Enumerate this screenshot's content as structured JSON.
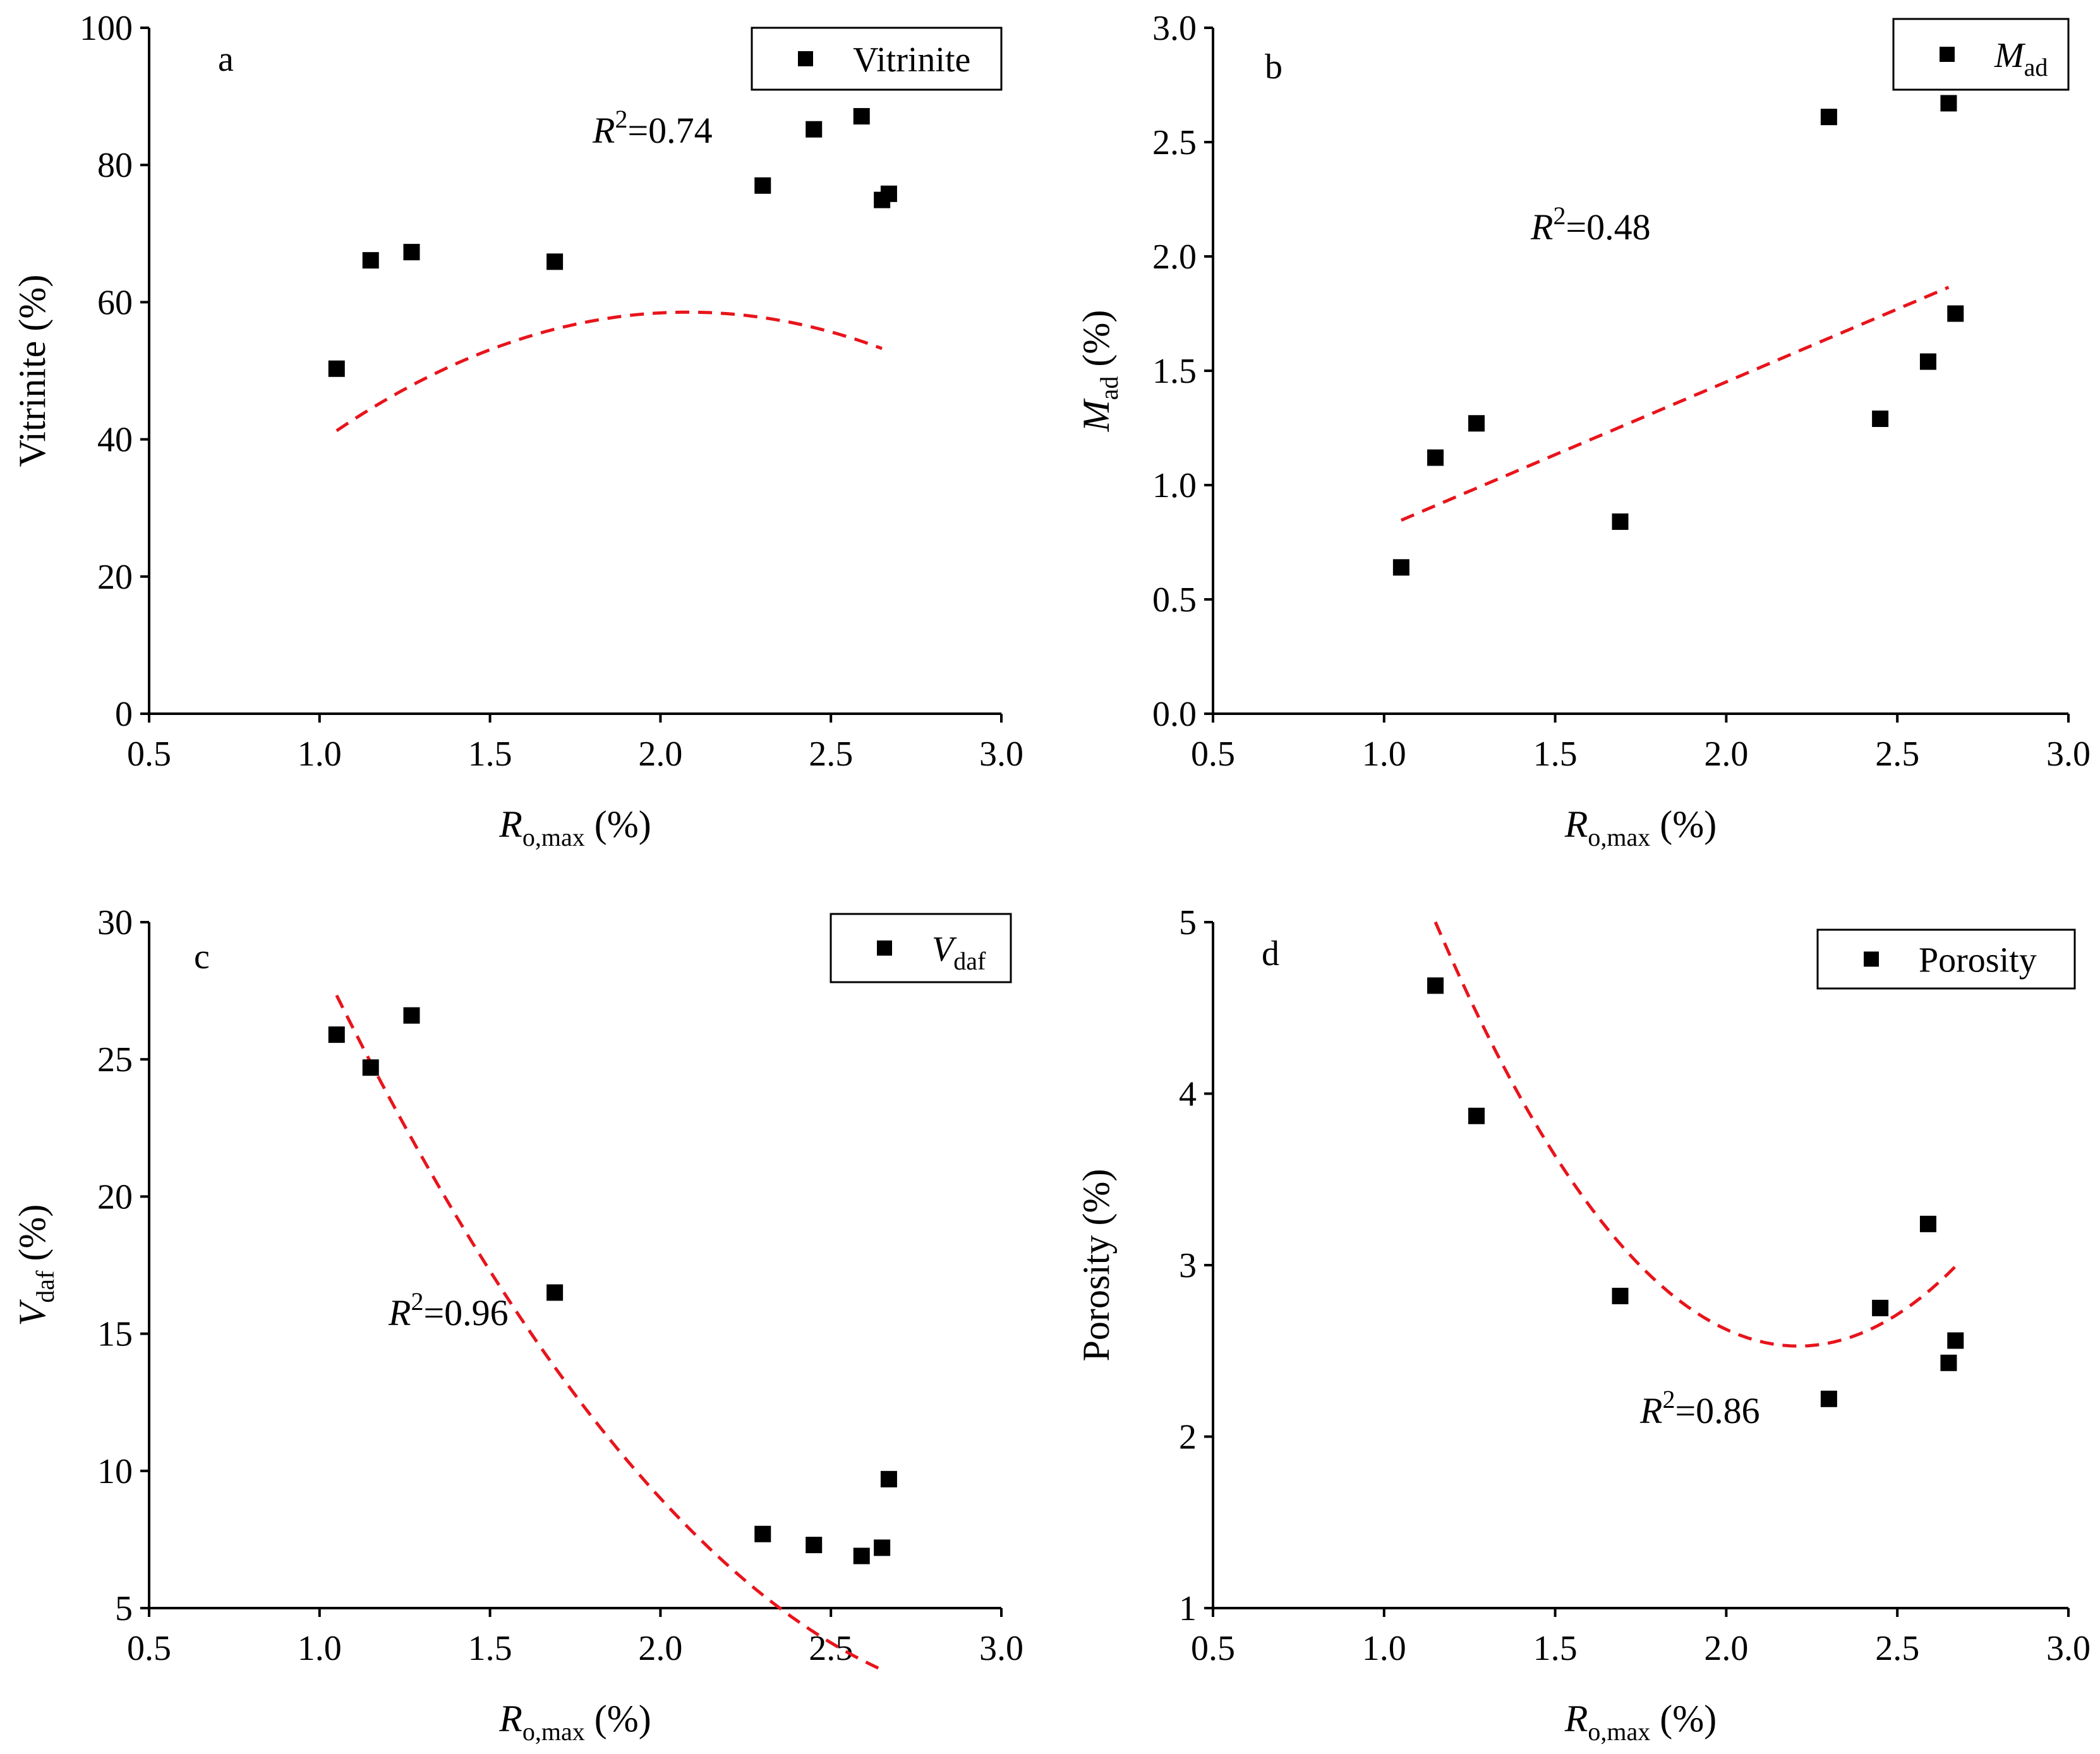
{
  "chart_data": [
    {
      "id": "a",
      "type": "scatter",
      "panel_label": "a",
      "xlabel_main": "R",
      "xlabel_sub": "o,max",
      "xlabel_unit": "(%)",
      "ylabel_main": "Vitrinite",
      "ylabel_sub": "",
      "ylabel_unit": "(%)",
      "xlim": [
        0.5,
        3.0
      ],
      "ylim": [
        0,
        100
      ],
      "x_ticks": [
        0.5,
        1.0,
        1.5,
        2.0,
        2.5,
        3.0
      ],
      "y_ticks": [
        0,
        20,
        40,
        60,
        80,
        100
      ],
      "x_tick_labels": [
        "0.5",
        "1.0",
        "1.5",
        "2.0",
        "2.5",
        "3.0"
      ],
      "y_tick_labels": [
        "0",
        "20",
        "40",
        "60",
        "80",
        "100"
      ],
      "legend": {
        "main": "Vitrinite",
        "sub": "",
        "italic": false,
        "position": "top-right"
      },
      "series": [
        {
          "x": [
            1.05,
            1.15,
            1.27,
            1.69,
            2.3,
            2.45,
            2.59,
            2.65,
            2.67
          ],
          "y": [
            50.3,
            66.1,
            67.3,
            65.9,
            77.0,
            85.2,
            87.1,
            74.9,
            75.8
          ]
        }
      ],
      "fit": {
        "type": "quadratic",
        "coef": [
          -11.96,
          67.8,
          -16.3
        ],
        "x_range": [
          1.05,
          2.65
        ]
      },
      "r2": {
        "prefix": "R",
        "exp": "2",
        "value": "=0.74"
      }
    },
    {
      "id": "b",
      "type": "scatter",
      "panel_label": "b",
      "xlabel_main": "R",
      "xlabel_sub": "o,max",
      "xlabel_unit": "(%)",
      "ylabel_main": "M",
      "ylabel_sub": "ad",
      "ylabel_unit": "(%)",
      "xlim": [
        0.5,
        3.0
      ],
      "ylim": [
        0,
        3.0
      ],
      "x_ticks": [
        0.5,
        1.0,
        1.5,
        2.0,
        2.5,
        3.0
      ],
      "y_ticks": [
        0,
        0.5,
        1.0,
        1.5,
        2.0,
        2.5,
        3.0
      ],
      "x_tick_labels": [
        "0.5",
        "1.0",
        "1.5",
        "2.0",
        "2.5",
        "3.0"
      ],
      "y_tick_labels": [
        "0.0",
        "0.5",
        "1.0",
        "1.5",
        "2.0",
        "2.5",
        "3.0"
      ],
      "legend": {
        "main": "M",
        "sub": "ad",
        "italic": true,
        "position": "top-right"
      },
      "series": [
        {
          "x": [
            1.05,
            1.15,
            1.27,
            1.69,
            2.3,
            2.45,
            2.59,
            2.65,
            2.67
          ],
          "y": [
            0.64,
            1.12,
            1.27,
            0.84,
            2.61,
            1.29,
            1.54,
            2.67,
            1.75
          ]
        }
      ],
      "fit": {
        "type": "linear",
        "coef": [
          0.1775,
          0.6369
        ],
        "x_range": [
          1.05,
          2.65
        ]
      },
      "r2": {
        "prefix": "R",
        "exp": "2",
        "value": "=0.48"
      }
    },
    {
      "id": "c",
      "type": "scatter",
      "panel_label": "c",
      "xlabel_main": "R",
      "xlabel_sub": "o,max",
      "xlabel_unit": "(%)",
      "ylabel_main": "V",
      "ylabel_sub": "daf",
      "ylabel_unit": "(%)",
      "xlim": [
        0.5,
        3.0
      ],
      "ylim": [
        5,
        30
      ],
      "x_ticks": [
        0.5,
        1.0,
        1.5,
        2.0,
        2.5,
        3.0
      ],
      "y_ticks": [
        5,
        10,
        15,
        20,
        25,
        30
      ],
      "x_tick_labels": [
        "0.5",
        "1.0",
        "1.5",
        "2.0",
        "2.5",
        "3.0"
      ],
      "y_tick_labels": [
        "5",
        "10",
        "15",
        "20",
        "25",
        "30"
      ],
      "legend": {
        "main": "V",
        "sub": "daf",
        "italic": true,
        "position": "top-right"
      },
      "series": [
        {
          "x": [
            1.05,
            1.15,
            1.27,
            1.69,
            2.3,
            2.45,
            2.59,
            2.65,
            2.67
          ],
          "y": [
            25.9,
            24.7,
            26.6,
            16.5,
            7.7,
            7.3,
            6.9,
            7.2,
            9.7
          ]
        }
      ],
      "fit": {
        "type": "quadratic",
        "coef": [
          60.3,
          -37.75,
          6.05
        ],
        "x_range": [
          1.05,
          2.65
        ]
      },
      "r2": {
        "prefix": "R",
        "exp": "2",
        "value": "=0.96"
      }
    },
    {
      "id": "d",
      "type": "scatter",
      "panel_label": "d",
      "xlabel_main": "R",
      "xlabel_sub": "o,max",
      "xlabel_unit": "(%)",
      "ylabel_main": "Porosity",
      "ylabel_sub": "",
      "ylabel_unit": "(%)",
      "xlim": [
        0.5,
        3.0
      ],
      "ylim": [
        1,
        5
      ],
      "x_ticks": [
        0.5,
        1.0,
        1.5,
        2.0,
        2.5,
        3.0
      ],
      "y_ticks": [
        1,
        2,
        3,
        4,
        5
      ],
      "x_tick_labels": [
        "0.5",
        "1.0",
        "1.5",
        "2.0",
        "2.5",
        "3.0"
      ],
      "y_tick_labels": [
        "1",
        "2",
        "3",
        "4",
        "5"
      ],
      "legend": {
        "main": "Porosity",
        "sub": "",
        "italic": false,
        "position": "top-right"
      },
      "series": [
        {
          "x": [
            1.15,
            1.27,
            1.69,
            2.3,
            2.45,
            2.59,
            2.65,
            2.67
          ],
          "y": [
            4.63,
            3.87,
            2.82,
            2.22,
            2.75,
            3.24,
            2.43,
            2.56
          ]
        }
      ],
      "fit": {
        "type": "quadratic",
        "coef": [
          13.275,
          -9.725,
          2.2
        ],
        "x_range": [
          1.15,
          2.67
        ]
      },
      "r2": {
        "prefix": "R",
        "exp": "2",
        "value": "=0.86"
      }
    }
  ]
}
